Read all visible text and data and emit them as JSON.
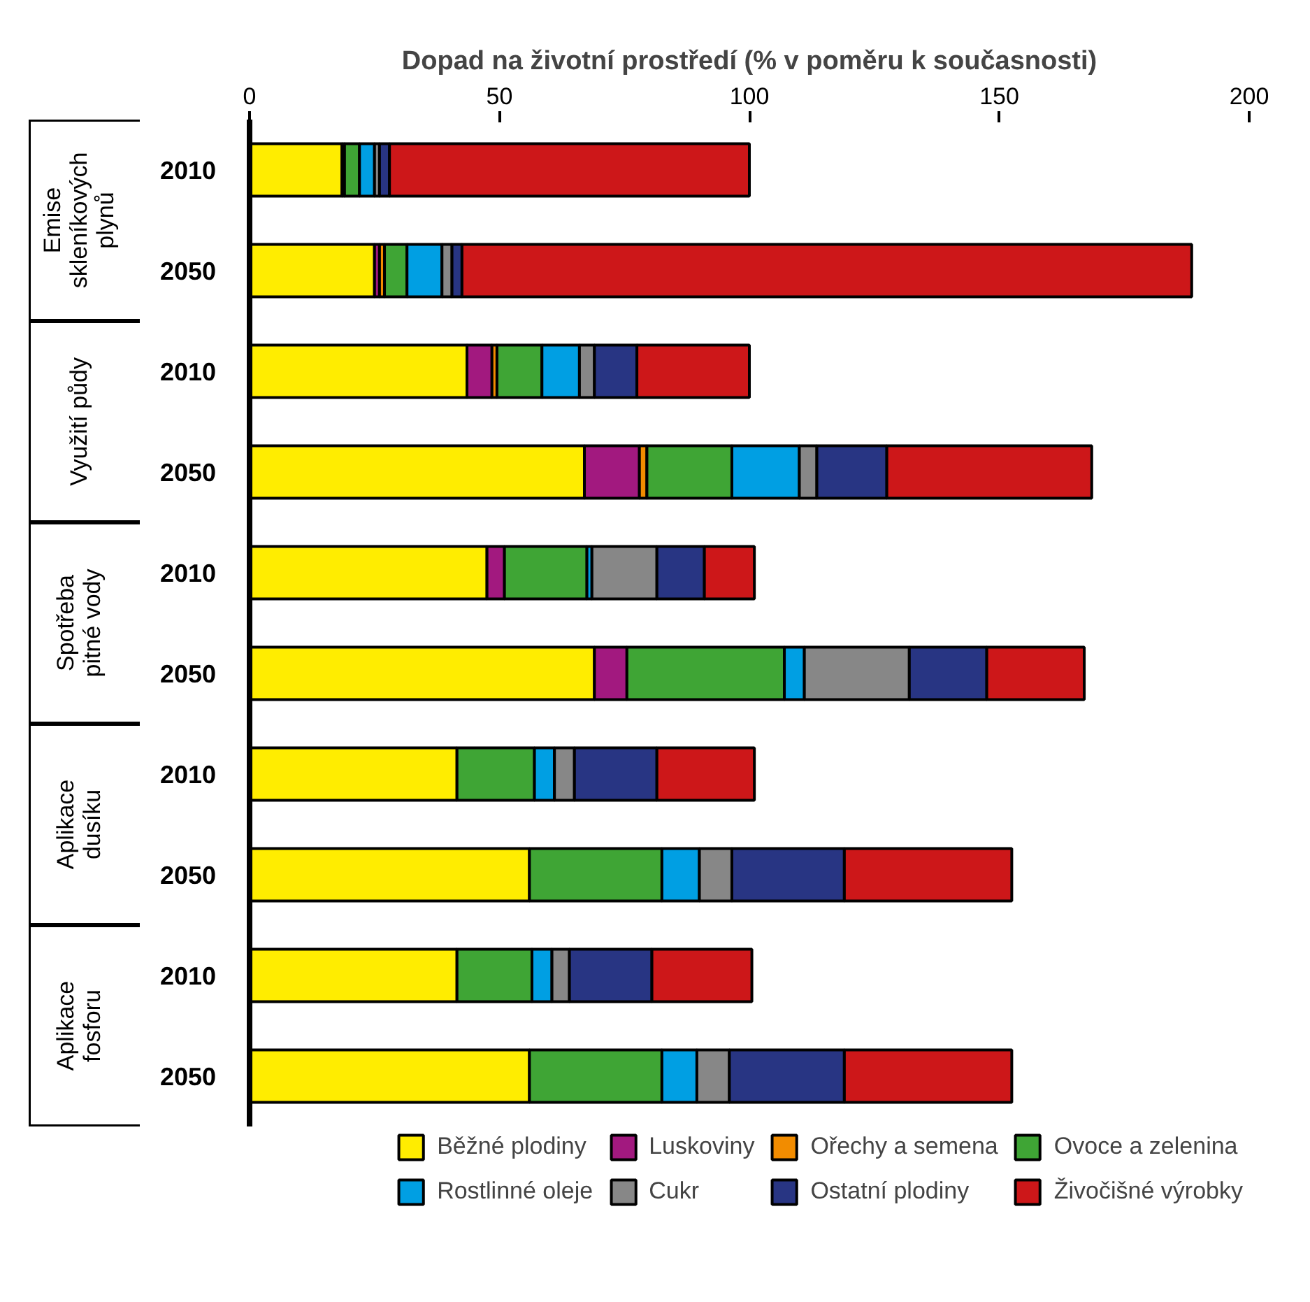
{
  "chart_data": {
    "type": "bar",
    "orientation": "horizontal",
    "stacked": true,
    "title": "Dopad na životní prostředí (% v poměru k současnosti)",
    "categories": [
      "2010",
      "2050",
      "2010",
      "2050",
      "2010",
      "2050",
      "2010",
      "2050",
      "2010",
      "2050"
    ],
    "annotations": [
      "Emise\nskleníkových\nplynů",
      "Využití půdy",
      "Spotřeba\npitné vody",
      "Aplikace\ndusíku",
      "Aplikace\nfosforu"
    ],
    "xlim": [
      0,
      200
    ],
    "xticks": [
      0,
      50,
      100,
      150,
      200
    ],
    "grid": false,
    "legend": "bottom",
    "series": [
      {
        "name": "Běžné plodiny",
        "color": "#ffed00",
        "values": [
          18.5,
          25,
          43.5,
          67,
          47.5,
          69,
          41.5,
          56,
          41.5,
          56
        ]
      },
      {
        "name": "Luskoviny",
        "color": "#a2197f",
        "values": [
          null,
          1,
          5,
          11,
          3.5,
          6.5,
          null,
          null,
          null,
          null
        ]
      },
      {
        "name": "Ořechy a semena",
        "color": "#f28c00",
        "values": [
          0.5,
          1,
          1,
          1.5,
          null,
          null,
          null,
          null,
          null,
          null
        ]
      },
      {
        "name": "Ovoce a zelenina",
        "color": "#3fa535",
        "values": [
          3,
          4.5,
          9,
          17,
          16.5,
          31.5,
          15.5,
          26.5,
          15,
          26.5
        ]
      },
      {
        "name": "Rostlinné oleje",
        "color": "#009fe3",
        "values": [
          3,
          7,
          7.5,
          13.5,
          1,
          4,
          4,
          7.5,
          4,
          7
        ]
      },
      {
        "name": "Cukr",
        "color": "#878787",
        "values": [
          1,
          2,
          3,
          3.5,
          13,
          21,
          4,
          6.5,
          3.5,
          6.5
        ]
      },
      {
        "name": "Ostatní plodiny",
        "color": "#283583",
        "values": [
          2,
          2,
          8.5,
          14,
          9.5,
          15.5,
          16.5,
          22.5,
          16.5,
          23
        ]
      },
      {
        "name": "Živočišné výrobky",
        "color": "#cd1719",
        "values": [
          72,
          146,
          22.5,
          41,
          10,
          19.5,
          19.5,
          33.5,
          20,
          33.5
        ]
      }
    ]
  }
}
